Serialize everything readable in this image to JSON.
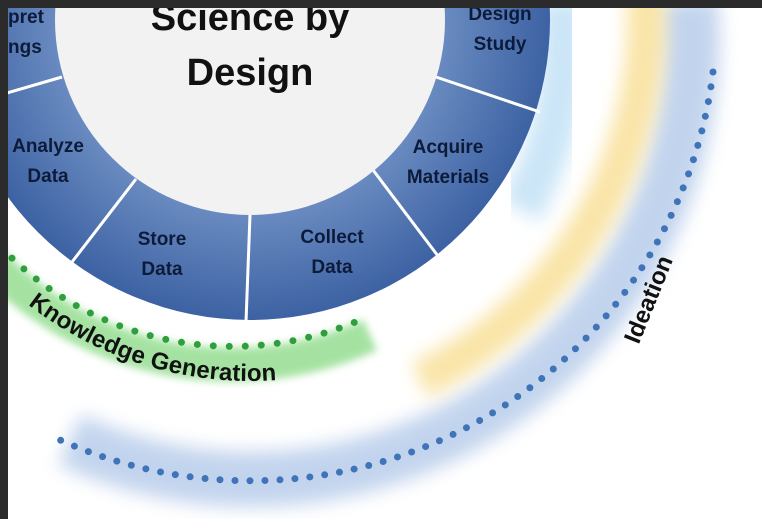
{
  "center": {
    "lines": [
      "Science by",
      "Design"
    ]
  },
  "segments": [
    {
      "lines": [
        "pret",
        "ngs"
      ]
    },
    {
      "lines": [
        "Design",
        "Study"
      ]
    },
    {
      "lines": [
        "Acquire",
        "Materials"
      ]
    },
    {
      "lines": [
        "Collect",
        "Data"
      ]
    },
    {
      "lines": [
        "Store",
        "Data"
      ]
    },
    {
      "lines": [
        "Analyze",
        "Data"
      ]
    }
  ],
  "outer": {
    "knowledge": "Knowledge Generation",
    "ideation": "Ideation"
  }
}
